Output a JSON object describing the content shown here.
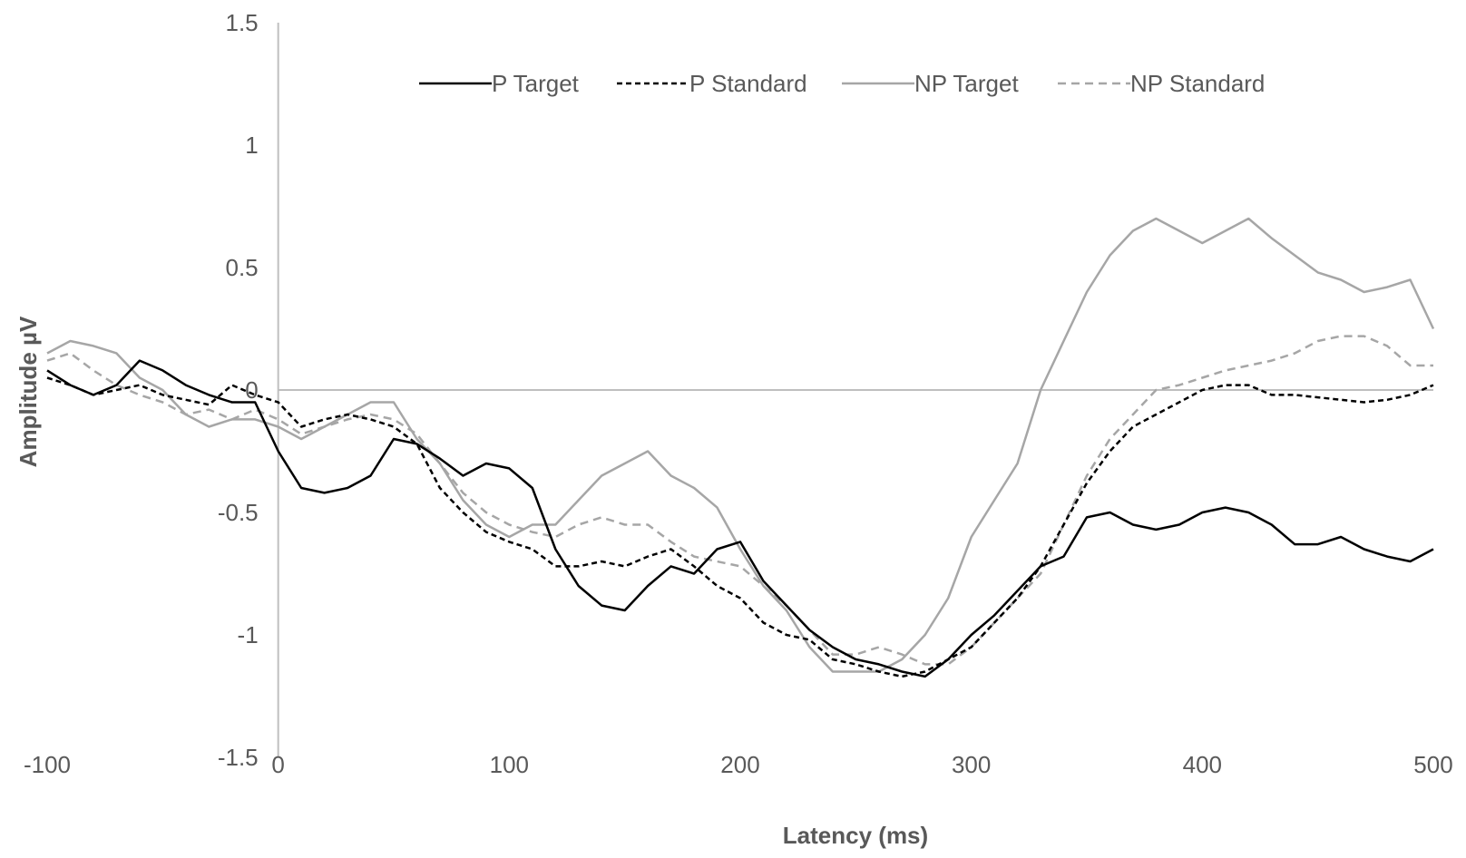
{
  "chart_data": {
    "type": "line",
    "title": "",
    "xlabel": "Latency (ms)",
    "ylabel": "Amplitude µV",
    "xlim": [
      -100,
      500
    ],
    "ylim": [
      -1.5,
      1.5
    ],
    "x_ticks": [
      -100,
      0,
      100,
      200,
      300,
      400,
      500
    ],
    "x_tick_labels": [
      "-100",
      "0",
      "100",
      "200",
      "300",
      "400",
      "500"
    ],
    "y_ticks": [
      1.5,
      1,
      0.5,
      0,
      -0.5,
      -1,
      -1.5
    ],
    "y_tick_labels": [
      "1.5",
      "1",
      "0.5",
      "0",
      "-0.5",
      "-1",
      "-1.5"
    ],
    "grid": false,
    "legend_position": "top",
    "series": [
      {
        "name": "P Target",
        "color": "#000000",
        "dash": "solid",
        "x": [
          -100,
          -90,
          -80,
          -70,
          -60,
          -50,
          -40,
          -30,
          -20,
          -10,
          0,
          10,
          20,
          30,
          40,
          50,
          60,
          70,
          80,
          90,
          100,
          110,
          120,
          130,
          140,
          150,
          160,
          170,
          180,
          190,
          200,
          210,
          220,
          230,
          240,
          250,
          260,
          270,
          280,
          290,
          300,
          310,
          320,
          330,
          340,
          350,
          360,
          370,
          380,
          390,
          400,
          410,
          420,
          430,
          440,
          450,
          460,
          470,
          480,
          490,
          500
        ],
        "values": [
          0.08,
          0.02,
          -0.02,
          0.02,
          0.12,
          0.08,
          0.02,
          -0.02,
          -0.05,
          -0.05,
          -0.25,
          -0.4,
          -0.42,
          -0.4,
          -0.35,
          -0.2,
          -0.22,
          -0.28,
          -0.35,
          -0.3,
          -0.32,
          -0.4,
          -0.65,
          -0.8,
          -0.88,
          -0.9,
          -0.8,
          -0.72,
          -0.75,
          -0.65,
          -0.62,
          -0.78,
          -0.88,
          -0.98,
          -1.05,
          -1.1,
          -1.12,
          -1.15,
          -1.17,
          -1.1,
          -1.0,
          -0.92,
          -0.82,
          -0.72,
          -0.68,
          -0.52,
          -0.5,
          -0.55,
          -0.57,
          -0.55,
          -0.5,
          -0.48,
          -0.5,
          -0.55,
          -0.63,
          -0.63,
          -0.6,
          -0.65,
          -0.68,
          -0.7,
          -0.65
        ]
      },
      {
        "name": "P Standard",
        "color": "#000000",
        "dash": "dashed",
        "x": [
          -100,
          -90,
          -80,
          -70,
          -60,
          -50,
          -40,
          -30,
          -20,
          -10,
          0,
          10,
          20,
          30,
          40,
          50,
          60,
          70,
          80,
          90,
          100,
          110,
          120,
          130,
          140,
          150,
          160,
          170,
          180,
          190,
          200,
          210,
          220,
          230,
          240,
          250,
          260,
          270,
          280,
          290,
          300,
          310,
          320,
          330,
          340,
          350,
          360,
          370,
          380,
          390,
          400,
          410,
          420,
          430,
          440,
          450,
          460,
          470,
          480,
          490,
          500
        ],
        "values": [
          0.05,
          0.02,
          -0.02,
          0.0,
          0.02,
          -0.02,
          -0.04,
          -0.06,
          0.02,
          -0.02,
          -0.05,
          -0.15,
          -0.12,
          -0.1,
          -0.12,
          -0.15,
          -0.22,
          -0.4,
          -0.5,
          -0.58,
          -0.62,
          -0.65,
          -0.72,
          -0.72,
          -0.7,
          -0.72,
          -0.68,
          -0.65,
          -0.72,
          -0.8,
          -0.85,
          -0.95,
          -1.0,
          -1.02,
          -1.1,
          -1.12,
          -1.15,
          -1.17,
          -1.15,
          -1.1,
          -1.05,
          -0.95,
          -0.85,
          -0.72,
          -0.55,
          -0.38,
          -0.25,
          -0.15,
          -0.1,
          -0.05,
          0.0,
          0.02,
          0.02,
          -0.02,
          -0.02,
          -0.03,
          -0.04,
          -0.05,
          -0.04,
          -0.02,
          0.02
        ]
      },
      {
        "name": "NP Target",
        "color": "#a6a6a6",
        "dash": "solid",
        "x": [
          -100,
          -90,
          -80,
          -70,
          -60,
          -50,
          -40,
          -30,
          -20,
          -10,
          0,
          10,
          20,
          30,
          40,
          50,
          60,
          70,
          80,
          90,
          100,
          110,
          120,
          130,
          140,
          150,
          160,
          170,
          180,
          190,
          200,
          210,
          220,
          230,
          240,
          250,
          260,
          270,
          280,
          290,
          300,
          310,
          320,
          330,
          340,
          350,
          360,
          370,
          380,
          390,
          400,
          410,
          420,
          430,
          440,
          450,
          460,
          470,
          480,
          490,
          500
        ],
        "values": [
          0.15,
          0.2,
          0.18,
          0.15,
          0.05,
          0.0,
          -0.1,
          -0.15,
          -0.12,
          -0.12,
          -0.15,
          -0.2,
          -0.15,
          -0.1,
          -0.05,
          -0.05,
          -0.2,
          -0.3,
          -0.45,
          -0.55,
          -0.6,
          -0.55,
          -0.55,
          -0.45,
          -0.35,
          -0.3,
          -0.25,
          -0.35,
          -0.4,
          -0.48,
          -0.65,
          -0.8,
          -0.9,
          -1.05,
          -1.15,
          -1.15,
          -1.15,
          -1.1,
          -1.0,
          -0.85,
          -0.6,
          -0.45,
          -0.3,
          0.0,
          0.2,
          0.4,
          0.55,
          0.65,
          0.7,
          0.65,
          0.6,
          0.65,
          0.7,
          0.62,
          0.55,
          0.48,
          0.45,
          0.4,
          0.42,
          0.45,
          0.25
        ]
      },
      {
        "name": "NP Standard",
        "color": "#a6a6a6",
        "dash": "dashed",
        "x": [
          -100,
          -90,
          -80,
          -70,
          -60,
          -50,
          -40,
          -30,
          -20,
          -10,
          0,
          10,
          20,
          30,
          40,
          50,
          60,
          70,
          80,
          90,
          100,
          110,
          120,
          130,
          140,
          150,
          160,
          170,
          180,
          190,
          200,
          210,
          220,
          230,
          240,
          250,
          260,
          270,
          280,
          290,
          300,
          310,
          320,
          330,
          340,
          350,
          360,
          370,
          380,
          390,
          400,
          410,
          420,
          430,
          440,
          450,
          460,
          470,
          480,
          490,
          500
        ],
        "values": [
          0.12,
          0.15,
          0.08,
          0.02,
          -0.02,
          -0.05,
          -0.1,
          -0.08,
          -0.12,
          -0.08,
          -0.12,
          -0.18,
          -0.15,
          -0.12,
          -0.1,
          -0.12,
          -0.18,
          -0.3,
          -0.42,
          -0.5,
          -0.55,
          -0.58,
          -0.6,
          -0.55,
          -0.52,
          -0.55,
          -0.55,
          -0.62,
          -0.68,
          -0.7,
          -0.72,
          -0.8,
          -0.88,
          -0.98,
          -1.08,
          -1.08,
          -1.05,
          -1.08,
          -1.12,
          -1.12,
          -1.05,
          -0.95,
          -0.85,
          -0.75,
          -0.55,
          -0.35,
          -0.2,
          -0.1,
          0.0,
          0.02,
          0.05,
          0.08,
          0.1,
          0.12,
          0.15,
          0.2,
          0.22,
          0.22,
          0.18,
          0.1,
          0.1
        ]
      }
    ]
  }
}
